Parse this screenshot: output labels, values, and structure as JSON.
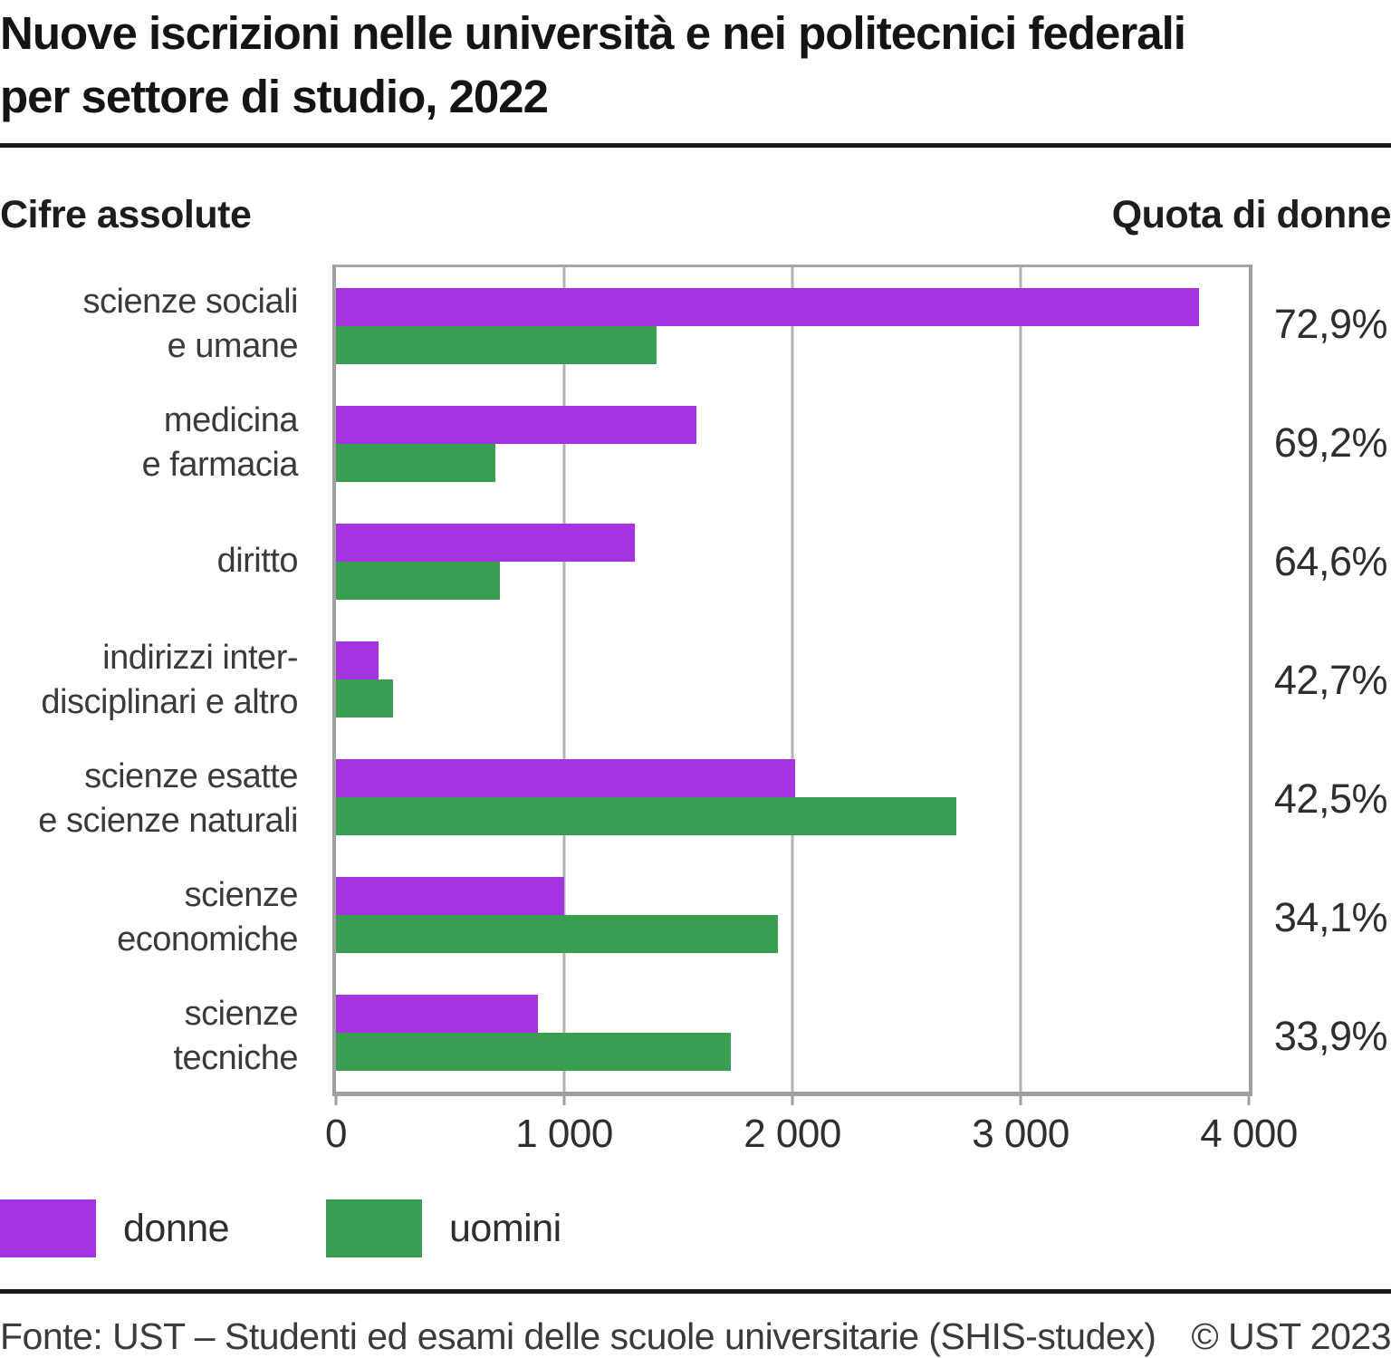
{
  "header": {
    "title": "Nuove iscrizioni nelle università e nei politecnici federali per settore di studio, 2022",
    "title_line1": "Nuove iscrizioni nelle università e nei politecnici federali",
    "title_line2": "per settore di studio, 2022",
    "left_subtitle": "Cifre assolute",
    "right_subtitle": "Quota di donne"
  },
  "chart_data": {
    "type": "bar",
    "orientation": "horizontal",
    "title": "Nuove iscrizioni nelle università e nei politecnici federali per settore di studio, 2022",
    "categories": [
      "scienze sociali e umane",
      "medicina e farmacia",
      "diritto",
      "indirizzi interdisciplinari e altro",
      "scienze esatte e scienze naturali",
      "scienze economiche",
      "scienze tecniche"
    ],
    "category_label_lines": [
      [
        "scienze sociali",
        "e umane"
      ],
      [
        "medicina",
        "e farmacia"
      ],
      [
        "diritto"
      ],
      [
        "indirizzi inter-",
        "disciplinari e altro"
      ],
      [
        "scienze esatte",
        "e scienze naturali"
      ],
      [
        "scienze",
        "economiche"
      ],
      [
        "scienze",
        "tecniche"
      ]
    ],
    "series": [
      {
        "name": "donne",
        "color": "#a433e1",
        "values": [
          3780,
          1580,
          1310,
          185,
          2010,
          1000,
          885
        ]
      },
      {
        "name": "uomini",
        "color": "#3a9e52",
        "values": [
          1405,
          700,
          720,
          250,
          2720,
          1935,
          1730
        ]
      }
    ],
    "share_of_women": [
      "72,9%",
      "69,2%",
      "64,6%",
      "42,7%",
      "42,5%",
      "34,1%",
      "33,9%"
    ],
    "xlim": [
      0,
      4000
    ],
    "x_ticks": [
      "0",
      "1 000",
      "2 000",
      "3 000",
      "4 000"
    ],
    "grid": true,
    "legend_position": "bottom"
  },
  "footer": {
    "source": "Fonte: UST – Studenti ed esami delle scuole universitarie (SHIS-studex)",
    "copyright": "© UST 2023"
  }
}
